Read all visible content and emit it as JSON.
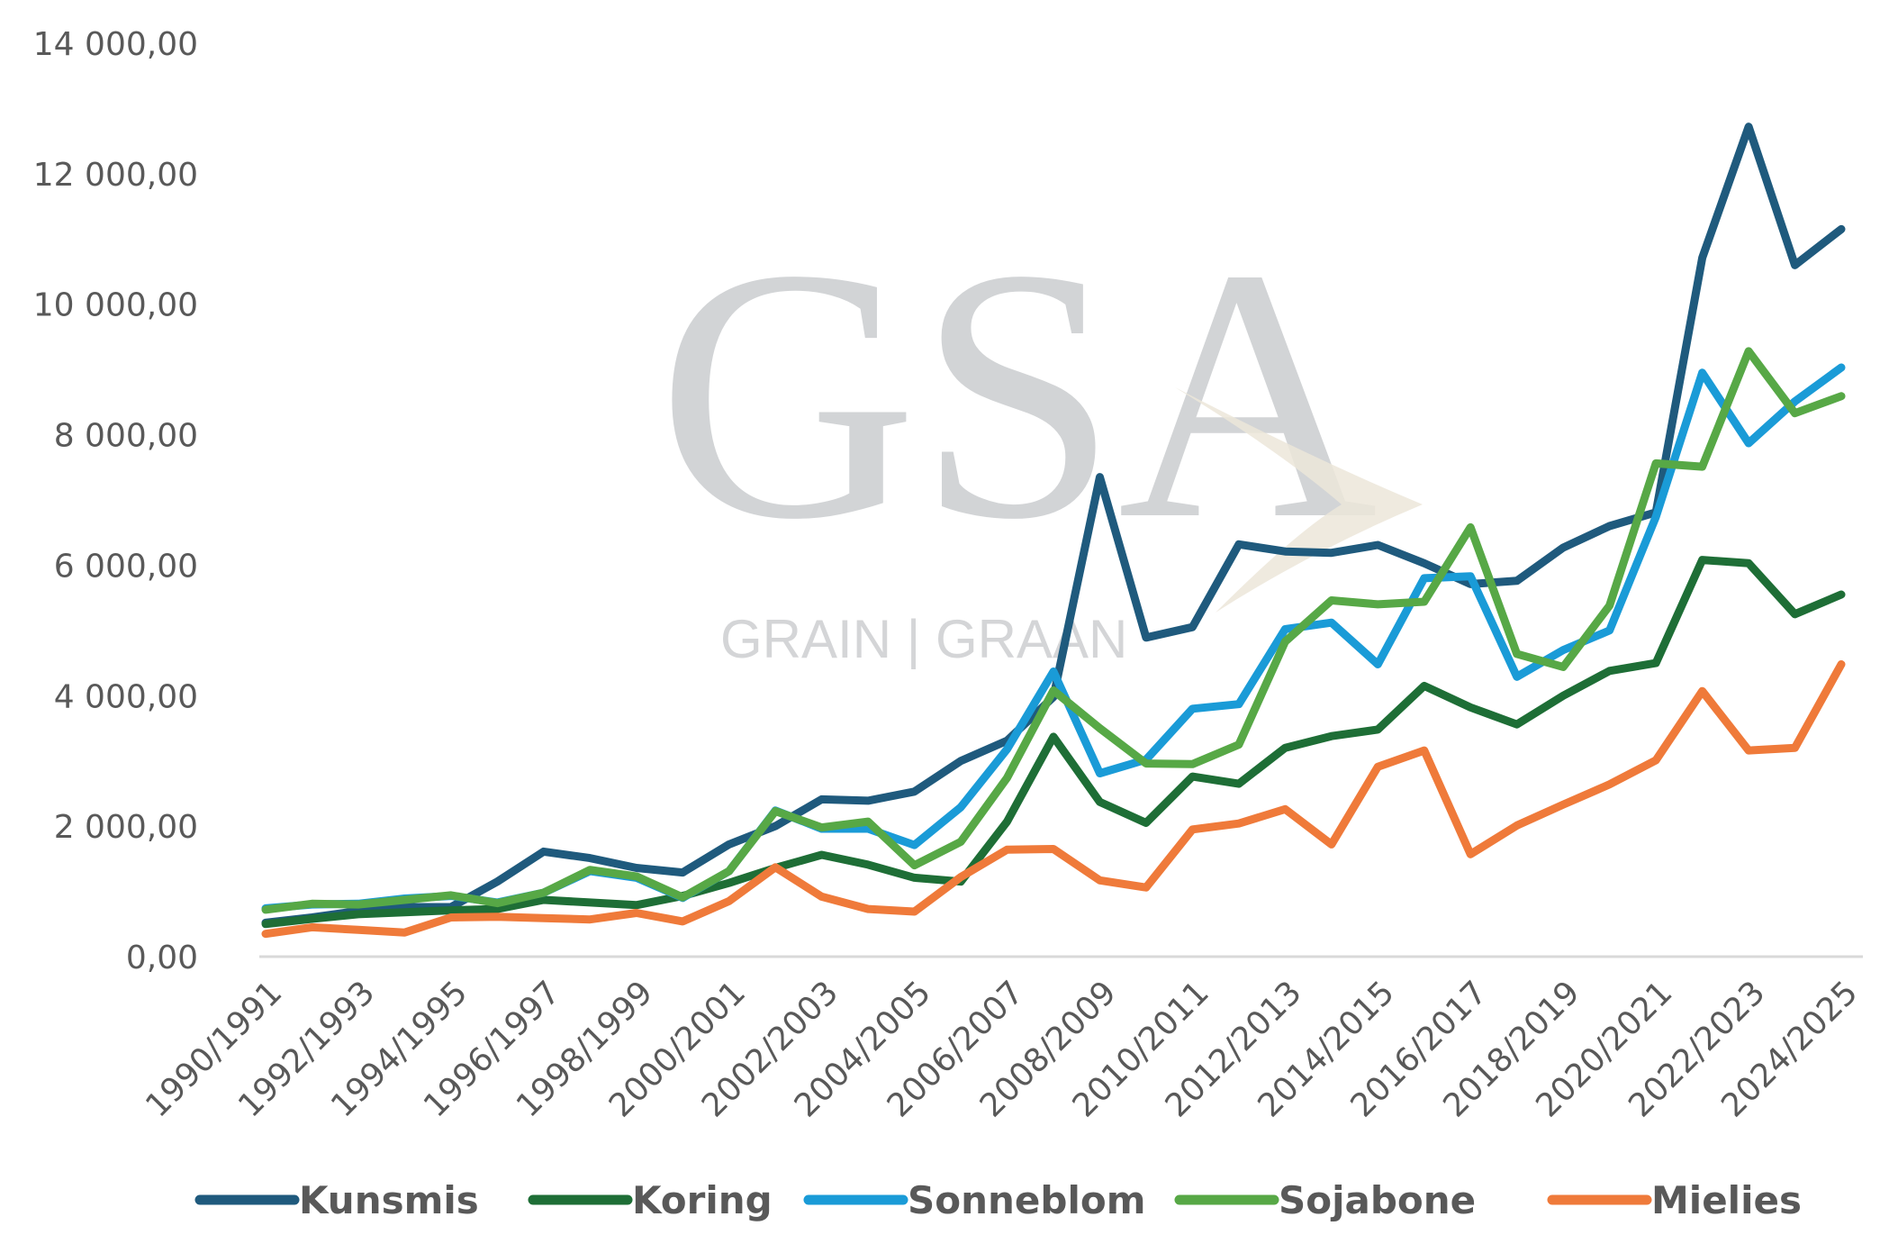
{
  "watermark": {
    "brand": "GSA",
    "subtitle": "GRAIN | GRAAN"
  },
  "chart_data": {
    "type": "line",
    "title": "",
    "xlabel": "",
    "ylabel": "",
    "ylim": [
      0,
      14000
    ],
    "y_ticks": [
      0,
      2000,
      4000,
      6000,
      8000,
      10000,
      12000,
      14000
    ],
    "y_tick_labels": [
      "0,00",
      "2 000,00",
      "4 000,00",
      "6 000,00",
      "8 000,00",
      "10 000,00",
      "12 000,00",
      "14 000,00"
    ],
    "grid": false,
    "legend_position": "bottom",
    "categories": [
      "1990/1991",
      "1991/1992",
      "1992/1993",
      "1993/1994",
      "1994/1995",
      "1995/1996",
      "1996/1997",
      "1997/1998",
      "1998/1999",
      "1999/2000",
      "2000/2001",
      "2001/2002",
      "2002/2003",
      "2003/2004",
      "2004/2005",
      "2005/2006",
      "2006/2007",
      "2007/2008",
      "2008/2009",
      "2009/2010",
      "2010/2011",
      "2011/2012",
      "2012/2013",
      "2013/2014",
      "2014/2015",
      "2015/2016",
      "2016/2017",
      "2017/2018",
      "2018/2019",
      "2019/2020",
      "2020/2021",
      "2021/2022",
      "2022/2023",
      "2023/2024",
      "2024/2025"
    ],
    "x_tick_labels": [
      "1990/1991",
      "1992/1993",
      "1994/1995",
      "1996/1997",
      "1998/1999",
      "2000/2001",
      "2002/2003",
      "2004/2005",
      "2006/2007",
      "2008/2009",
      "2010/2011",
      "2012/2013",
      "2014/2015",
      "2016/2017",
      "2018/2019",
      "2020/2021",
      "2022/2023",
      "2024/2025"
    ],
    "series": [
      {
        "name": "Kunsmis",
        "color": "#1f5a7d",
        "values": [
          520,
          600,
          700,
          760,
          760,
          1150,
          1610,
          1510,
          1360,
          1290,
          1720,
          2000,
          2410,
          2390,
          2530,
          3000,
          3310,
          3980,
          7350,
          4890,
          5050,
          6320,
          6210,
          6190,
          6310,
          6030,
          5710,
          5760,
          6270,
          6600,
          6810,
          10710,
          12720,
          10600,
          11150
        ]
      },
      {
        "name": "Koring",
        "color": "#1e6e36",
        "values": [
          500,
          580,
          650,
          680,
          710,
          730,
          870,
          830,
          790,
          930,
          1130,
          1360,
          1560,
          1410,
          1210,
          1150,
          2070,
          3370,
          2370,
          2050,
          2760,
          2650,
          3200,
          3380,
          3480,
          4150,
          3820,
          3560,
          4000,
          4380,
          4500,
          6080,
          6030,
          5250,
          5550
        ]
      },
      {
        "name": "Sonneblom",
        "color": "#1a9bd7",
        "values": [
          740,
          800,
          810,
          890,
          930,
          830,
          980,
          1310,
          1210,
          900,
          1310,
          2240,
          1960,
          1960,
          1710,
          2290,
          3180,
          4370,
          2810,
          3020,
          3800,
          3870,
          5020,
          5120,
          4480,
          5800,
          5830,
          4290,
          4700,
          5000,
          6740,
          8950,
          7870,
          8510,
          9030
        ]
      },
      {
        "name": "Sojabone",
        "color": "#57a846",
        "values": [
          720,
          810,
          800,
          870,
          940,
          820,
          980,
          1330,
          1230,
          910,
          1310,
          2230,
          1980,
          2070,
          1400,
          1760,
          2740,
          4080,
          3500,
          2960,
          2950,
          3250,
          4830,
          5460,
          5400,
          5440,
          6580,
          4640,
          4440,
          5380,
          7560,
          7510,
          9280,
          8330,
          8590
        ]
      },
      {
        "name": "Mielies",
        "color": "#ef7a3a",
        "values": [
          350,
          450,
          410,
          370,
          600,
          610,
          590,
          570,
          670,
          540,
          850,
          1370,
          920,
          730,
          690,
          1220,
          1640,
          1650,
          1170,
          1060,
          1950,
          2040,
          2260,
          1720,
          2910,
          3160,
          1570,
          2010,
          2330,
          2640,
          3010,
          4070,
          3160,
          3200,
          4480
        ]
      }
    ]
  }
}
